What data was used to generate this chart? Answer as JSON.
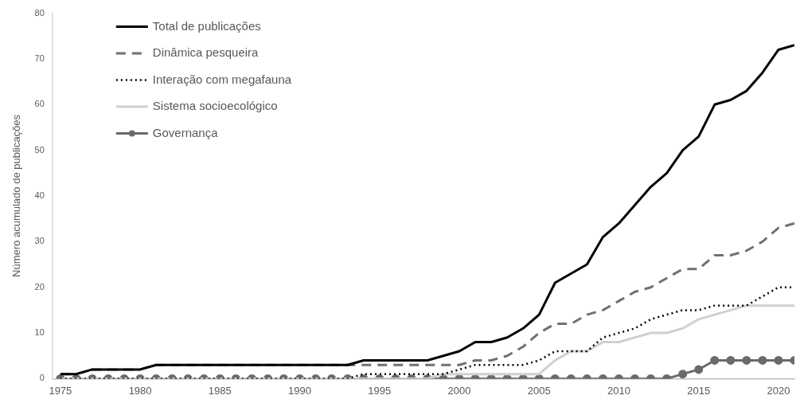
{
  "chart_data": {
    "type": "line",
    "ylabel": "Número acumulado de publicações",
    "x": [
      1975,
      1976,
      1977,
      1978,
      1979,
      1980,
      1981,
      1982,
      1983,
      1984,
      1985,
      1986,
      1987,
      1988,
      1989,
      1990,
      1991,
      1992,
      1993,
      1994,
      1995,
      1996,
      1997,
      1998,
      1999,
      2000,
      2001,
      2002,
      2003,
      2004,
      2005,
      2006,
      2007,
      2008,
      2009,
      2010,
      2011,
      2012,
      2013,
      2014,
      2015,
      2016,
      2017,
      2018,
      2019,
      2020,
      2021
    ],
    "xlim": [
      1974.5,
      2021
    ],
    "xticks": [
      1975,
      1980,
      1985,
      1990,
      1995,
      2000,
      2005,
      2010,
      2015,
      2020
    ],
    "ylim": [
      0,
      80
    ],
    "yticks": [
      0,
      10,
      20,
      30,
      40,
      50,
      60,
      70,
      80
    ],
    "grid": false,
    "legend": "top left",
    "series": [
      {
        "name": "Total de publicações",
        "color": "#000000",
        "line_style": "solid",
        "marker": "none",
        "values": [
          1,
          1,
          2,
          2,
          2,
          2,
          3,
          3,
          3,
          3,
          3,
          3,
          3,
          3,
          3,
          3,
          3,
          3,
          3,
          4,
          4,
          4,
          4,
          4,
          5,
          6,
          8,
          8,
          9,
          11,
          14,
          21,
          23,
          25,
          31,
          34,
          38,
          42,
          45,
          50,
          53,
          60,
          61,
          63,
          67,
          72,
          73
        ]
      },
      {
        "name": "Dinâmica pesqueira",
        "color": "#707070",
        "line_style": "dashed",
        "marker": "none",
        "values": [
          1,
          1,
          2,
          2,
          2,
          2,
          3,
          3,
          3,
          3,
          3,
          3,
          3,
          3,
          3,
          3,
          3,
          3,
          3,
          3,
          3,
          3,
          3,
          3,
          3,
          3,
          4,
          4,
          5,
          7,
          10,
          12,
          12,
          14,
          15,
          17,
          19,
          20,
          22,
          24,
          24,
          27,
          27,
          28,
          30,
          33,
          34
        ]
      },
      {
        "name": "Interação com megafauna",
        "color": "#000000",
        "line_style": "dotted",
        "marker": "none",
        "values": [
          0,
          0,
          0,
          0,
          0,
          0,
          0,
          0,
          0,
          0,
          0,
          0,
          0,
          0,
          0,
          0,
          0,
          0,
          0,
          1,
          1,
          1,
          1,
          1,
          1,
          2,
          3,
          3,
          3,
          3,
          4,
          6,
          6,
          6,
          9,
          10,
          11,
          13,
          14,
          15,
          15,
          16,
          16,
          16,
          18,
          20,
          20
        ]
      },
      {
        "name": "Sistema socioecológico",
        "color": "#d0d0d0",
        "line_style": "solid",
        "marker": "none",
        "values": [
          0,
          0,
          0,
          0,
          0,
          0,
          0,
          0,
          0,
          0,
          0,
          0,
          0,
          0,
          0,
          0,
          0,
          0,
          0,
          0,
          0,
          0,
          0,
          0,
          1,
          1,
          1,
          1,
          1,
          1,
          1,
          4,
          6,
          6,
          8,
          8,
          9,
          10,
          10,
          11,
          13,
          14,
          15,
          16,
          16,
          16,
          16
        ]
      },
      {
        "name": "Governança",
        "color": "#6a6a6a",
        "line_style": "solid",
        "marker": "circle",
        "values": [
          0,
          0,
          0,
          0,
          0,
          0,
          0,
          0,
          0,
          0,
          0,
          0,
          0,
          0,
          0,
          0,
          0,
          0,
          0,
          0,
          0,
          0,
          0,
          0,
          0,
          0,
          0,
          0,
          0,
          0,
          0,
          0,
          0,
          0,
          0,
          0,
          0,
          0,
          0,
          1,
          2,
          4,
          4,
          4,
          4,
          4,
          4
        ]
      }
    ]
  }
}
